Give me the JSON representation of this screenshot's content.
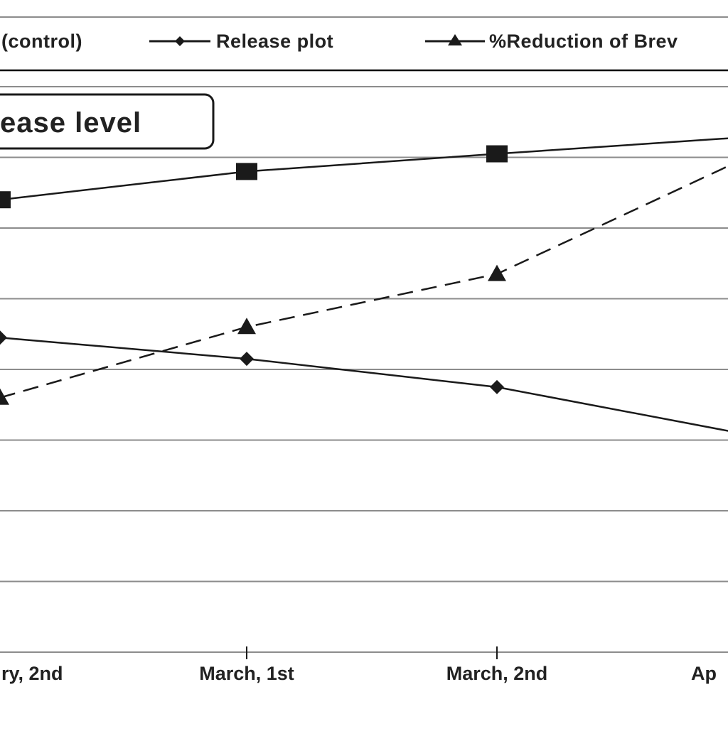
{
  "chart_data": {
    "type": "line",
    "title": "ease level",
    "categories": [
      "ry, 2nd",
      "March, 1st",
      "March, 2nd",
      "Ap"
    ],
    "ylim": [
      0,
      8
    ],
    "grid": true,
    "legend_position": "top",
    "series": [
      {
        "name": "(control)",
        "marker": "square",
        "line_style": "solid",
        "values": [
          6.4,
          6.8,
          7.05,
          7.28
        ]
      },
      {
        "name": "Release plot",
        "marker": "diamond",
        "line_style": "solid",
        "values": [
          4.45,
          4.15,
          3.75,
          3.1
        ]
      },
      {
        "name": "%Reduction of Brev",
        "marker": "triangle",
        "line_style": "dashed",
        "values": [
          3.6,
          4.6,
          5.35,
          6.95
        ]
      }
    ],
    "colors": {
      "line": "#1a1a1a",
      "grid": "#8c8c8c",
      "frame": "#000000"
    }
  }
}
